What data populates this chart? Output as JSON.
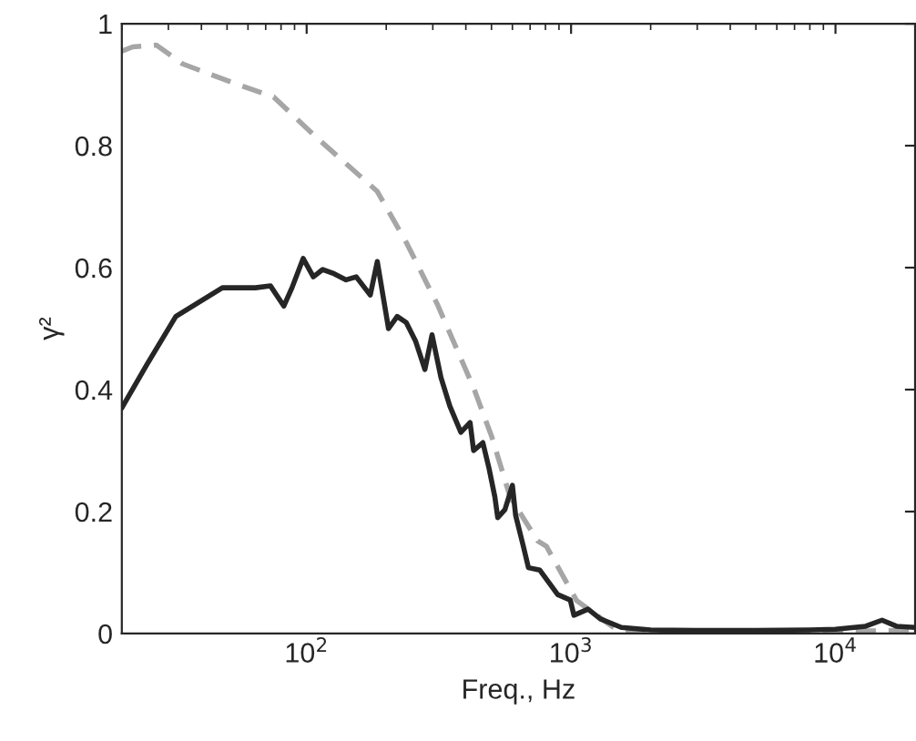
{
  "chart_data": {
    "type": "line",
    "xlabel": "Freq., Hz",
    "ylabel": "γ²",
    "log": "x",
    "xlim": [
      20,
      20000
    ],
    "xticks": [
      {
        "value": 100,
        "label": "10$^{2}$"
      },
      {
        "value": 1000,
        "label": "10$^{3}$"
      },
      {
        "value": 10000,
        "label": "10$^{4}$"
      }
    ],
    "ylim": [
      0,
      1
    ],
    "yticks": [
      0,
      0.2,
      0.4,
      0.6,
      0.8,
      1
    ],
    "grid": false,
    "series": [
      {
        "color": "#a6a6a6",
        "line_style": "dashed",
        "x": [
          20,
          22,
          27,
          34,
          52,
          75,
          108,
          185,
          239,
          312,
          384,
          428,
          502,
          588,
          747,
          807,
          1050,
          1500,
          3000,
          10000,
          20000
        ],
        "values": [
          0.955,
          0.962,
          0.965,
          0.934,
          0.904,
          0.88,
          0.815,
          0.725,
          0.64,
          0.54,
          0.45,
          0.403,
          0.322,
          0.224,
          0.152,
          0.143,
          0.054,
          0.005,
          0.004,
          0.004,
          0.005
        ]
      },
      {
        "color": "#262626",
        "line_style": "solid",
        "x": [
          20,
          24.8,
          32,
          48,
          64,
          73,
          82,
          88,
          97,
          106,
          115,
          127,
          141,
          154,
          174,
          185,
          204,
          220,
          238,
          258,
          280,
          298,
          322,
          348,
          383,
          415,
          428,
          464,
          490,
          515,
          528,
          562,
          600,
          617,
          660,
          690,
          762,
          890,
          993,
          1025,
          1160,
          1290,
          1550,
          2000,
          3000,
          5000,
          8000,
          10000,
          13000,
          15000,
          17000,
          20000
        ],
        "values": [
          0.37,
          0.44,
          0.52,
          0.567,
          0.567,
          0.57,
          0.537,
          0.567,
          0.615,
          0.585,
          0.597,
          0.59,
          0.58,
          0.585,
          0.555,
          0.61,
          0.5,
          0.52,
          0.51,
          0.48,
          0.433,
          0.49,
          0.42,
          0.373,
          0.33,
          0.346,
          0.3,
          0.313,
          0.27,
          0.224,
          0.19,
          0.203,
          0.243,
          0.194,
          0.143,
          0.108,
          0.104,
          0.064,
          0.055,
          0.03,
          0.04,
          0.024,
          0.01,
          0.006,
          0.005,
          0.005,
          0.006,
          0.007,
          0.012,
          0.022,
          0.012,
          0.01
        ]
      }
    ]
  }
}
